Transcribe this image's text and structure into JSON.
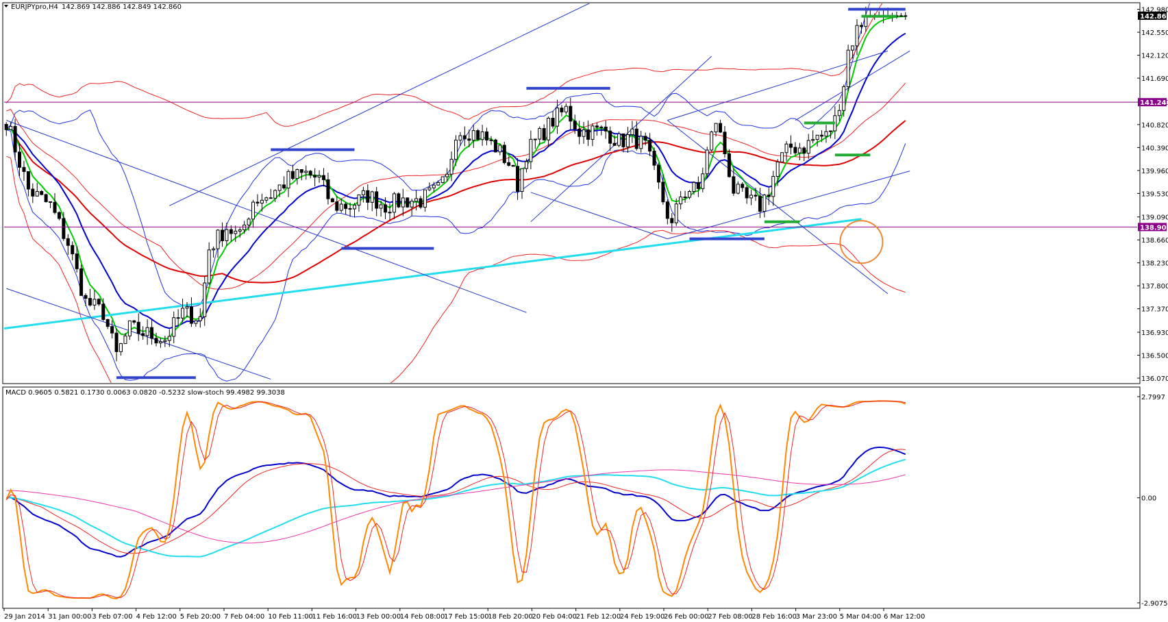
{
  "main_header": {
    "symbol": "EURJPYpro,H4",
    "ohlc": "142.869 142.886 142.849 142.860"
  },
  "sub_header": {
    "text": "MACD 0.9605 0.5821 0.1730 0.0063 0.0820 -0.5232  slow-stoch 99.4982 99.3038"
  },
  "colors": {
    "bg": "#ffffff",
    "grid": "#000000",
    "candle_up": "#ffffff",
    "candle_down": "#000000",
    "ema_green": "#00cc00",
    "ma_blue": "#0000cc",
    "ma_red": "#dd0000",
    "ma_cyan": "#22ddee",
    "band_blue": "#1f2fe0",
    "band_red": "#ee2222",
    "trend_blue": "#2233cc",
    "level_line": "#8b008b",
    "marker_blue": "#3344cc",
    "marker_green": "#22aa33",
    "circle": "#ee8833",
    "stoch_orange": "#ff8800",
    "macd_magenta": "#ee33aa"
  },
  "chart_data": [
    {
      "type": "candlestick",
      "symbol": "EURJPYpro",
      "timeframe": "H4",
      "last_price": 142.86,
      "ylim": [
        136.07,
        143.0
      ],
      "y_ticks": [
        "142.980",
        "142.550",
        "142.120",
        "141.690",
        "141.240",
        "140.820",
        "140.390",
        "139.960",
        "139.530",
        "139.090",
        "138.660",
        "138.230",
        "137.800",
        "137.370",
        "136.930",
        "136.500",
        "136.070"
      ],
      "x_labels": [
        "29 Jan 2014",
        "31 Jan 00:00",
        "3 Feb 07:00",
        "4 Feb 12:00",
        "5 Feb 20:00",
        "7 Feb 04:00",
        "10 Feb 11:00",
        "11 Feb 16:00",
        "13 Feb 00:00",
        "14 Feb 08:00",
        "17 Feb 15:00",
        "18 Feb 20:00",
        "20 Feb 04:00",
        "21 Feb 12:00",
        "24 Feb 19:00",
        "26 Feb 00:00",
        "27 Feb 08:00",
        "28 Feb 16:00",
        "3 Mar 23:00",
        "5 Mar 04:00",
        "6 Mar 12:00"
      ],
      "price_tags": [
        {
          "label": "142.860",
          "value": 142.86,
          "color": "#000000"
        },
        {
          "label": "141.240",
          "value": 141.24,
          "color": "#8b008b"
        },
        {
          "label": "138.901",
          "value": 138.901,
          "color": "#8b008b"
        }
      ],
      "horizontal_levels": [
        141.24,
        138.901
      ],
      "close_path": [
        [
          0,
          140.9
        ],
        [
          5,
          139.6
        ],
        [
          10,
          139.3
        ],
        [
          14,
          138.6
        ],
        [
          18,
          137.5
        ],
        [
          22,
          137.3
        ],
        [
          25,
          136.5
        ],
        [
          28,
          137.0
        ],
        [
          32,
          136.9
        ],
        [
          36,
          136.8
        ],
        [
          40,
          137.3
        ],
        [
          44,
          137.2
        ],
        [
          46,
          138.5
        ],
        [
          50,
          138.9
        ],
        [
          53,
          138.7
        ],
        [
          56,
          139.4
        ],
        [
          60,
          139.5
        ],
        [
          64,
          139.8
        ],
        [
          68,
          139.9
        ],
        [
          71,
          139.8
        ],
        [
          74,
          139.3
        ],
        [
          78,
          139.3
        ],
        [
          82,
          139.5
        ],
        [
          86,
          139.3
        ],
        [
          90,
          139.4
        ],
        [
          94,
          139.4
        ],
        [
          98,
          139.6
        ],
        [
          100,
          139.8
        ],
        [
          102,
          140.7
        ],
        [
          105,
          140.7
        ],
        [
          108,
          140.6
        ],
        [
          111,
          140.4
        ],
        [
          114,
          140.1
        ],
        [
          116,
          139.7
        ],
        [
          118,
          140.3
        ],
        [
          121,
          140.6
        ],
        [
          124,
          140.9
        ],
        [
          127,
          141.1
        ],
        [
          130,
          140.7
        ],
        [
          133,
          140.7
        ],
        [
          136,
          140.7
        ],
        [
          139,
          140.5
        ],
        [
          142,
          140.6
        ],
        [
          145,
          140.4
        ],
        [
          147,
          139.9
        ],
        [
          149,
          139.4
        ],
        [
          151,
          138.9
        ],
        [
          153,
          139.5
        ],
        [
          155,
          139.6
        ],
        [
          157,
          139.6
        ],
        [
          159,
          140.3
        ],
        [
          161,
          140.9
        ],
        [
          163,
          140.3
        ],
        [
          165,
          139.6
        ],
        [
          168,
          139.4
        ],
        [
          171,
          139.3
        ],
        [
          173,
          139.6
        ],
        [
          175,
          140.1
        ],
        [
          178,
          140.4
        ],
        [
          181,
          140.4
        ],
        [
          184,
          140.6
        ],
        [
          186,
          140.6
        ],
        [
          188,
          140.9
        ],
        [
          190,
          141.6
        ],
        [
          191,
          142.2
        ],
        [
          193,
          142.6
        ],
        [
          195,
          142.86
        ]
      ],
      "markers": {
        "blue_segments": [
          {
            "x": [
              25,
              43
            ],
            "y": 136.08
          },
          {
            "x": [
              60,
              79
            ],
            "y": 140.35
          },
          {
            "x": [
              76,
              97
            ],
            "y": 138.5
          },
          {
            "x": [
              118,
              137
            ],
            "y": 141.5
          },
          {
            "x": [
              155,
              172
            ],
            "y": 138.68
          },
          {
            "x": [
              191,
              204
            ],
            "y": 142.98
          }
        ],
        "green_segments": [
          {
            "x": [
              172,
              180
            ],
            "y": 139.0
          },
          {
            "x": [
              181,
              188
            ],
            "y": 140.85
          },
          {
            "x": [
              188,
              196
            ],
            "y": 140.25
          },
          {
            "x": [
              194,
              202
            ],
            "y": 142.85
          }
        ],
        "circle": {
          "x": 194,
          "y": 138.62
        }
      }
    },
    {
      "type": "line",
      "name": "MACD / slow-stoch",
      "y_ticks": [
        "2.7997",
        "0.00",
        "-2.9075"
      ],
      "ylim": [
        -2.9075,
        2.7997
      ]
    }
  ]
}
